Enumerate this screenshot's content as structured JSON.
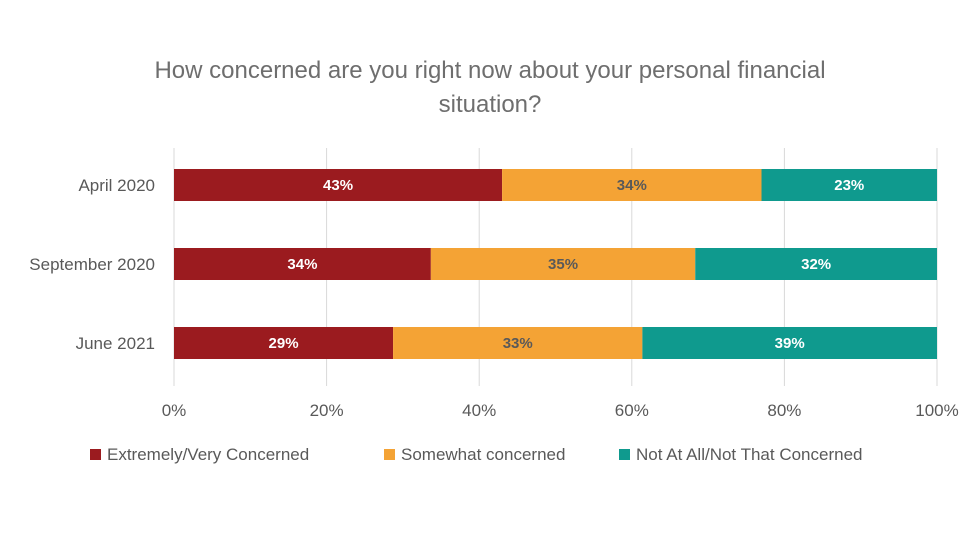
{
  "chart_data": {
    "type": "bar",
    "orientation": "horizontal",
    "stacked": true,
    "title": "How concerned are you right now about your personal financial situation?",
    "title_lines": [
      "How concerned are you right now about your personal financial",
      "situation?"
    ],
    "categories": [
      "April 2020",
      "September 2020",
      "June 2021"
    ],
    "series": [
      {
        "name": "Extremely/Very Concerned",
        "values": [
          43,
          34,
          29
        ],
        "labels": [
          "43%",
          "34%",
          "29%"
        ],
        "color": "#9b1b1f",
        "label_color": "#ffffff"
      },
      {
        "name": "Somewhat concerned",
        "values": [
          34,
          35,
          33
        ],
        "labels": [
          "34%",
          "35%",
          "33%"
        ],
        "color": "#f4a335",
        "label_color": "#595959"
      },
      {
        "name": "Not At All/Not That Concerned",
        "values": [
          23,
          32,
          39
        ],
        "labels": [
          "23%",
          "32%",
          "39%"
        ],
        "color": "#0f9a8e",
        "label_color": "#ffffff"
      }
    ],
    "xlim": [
      0,
      100
    ],
    "xticks": [
      0,
      20,
      40,
      60,
      80,
      100
    ],
    "xtick_labels": [
      "0%",
      "20%",
      "40%",
      "60%",
      "80%",
      "100%"
    ],
    "grid": true,
    "legend_position": "bottom"
  }
}
